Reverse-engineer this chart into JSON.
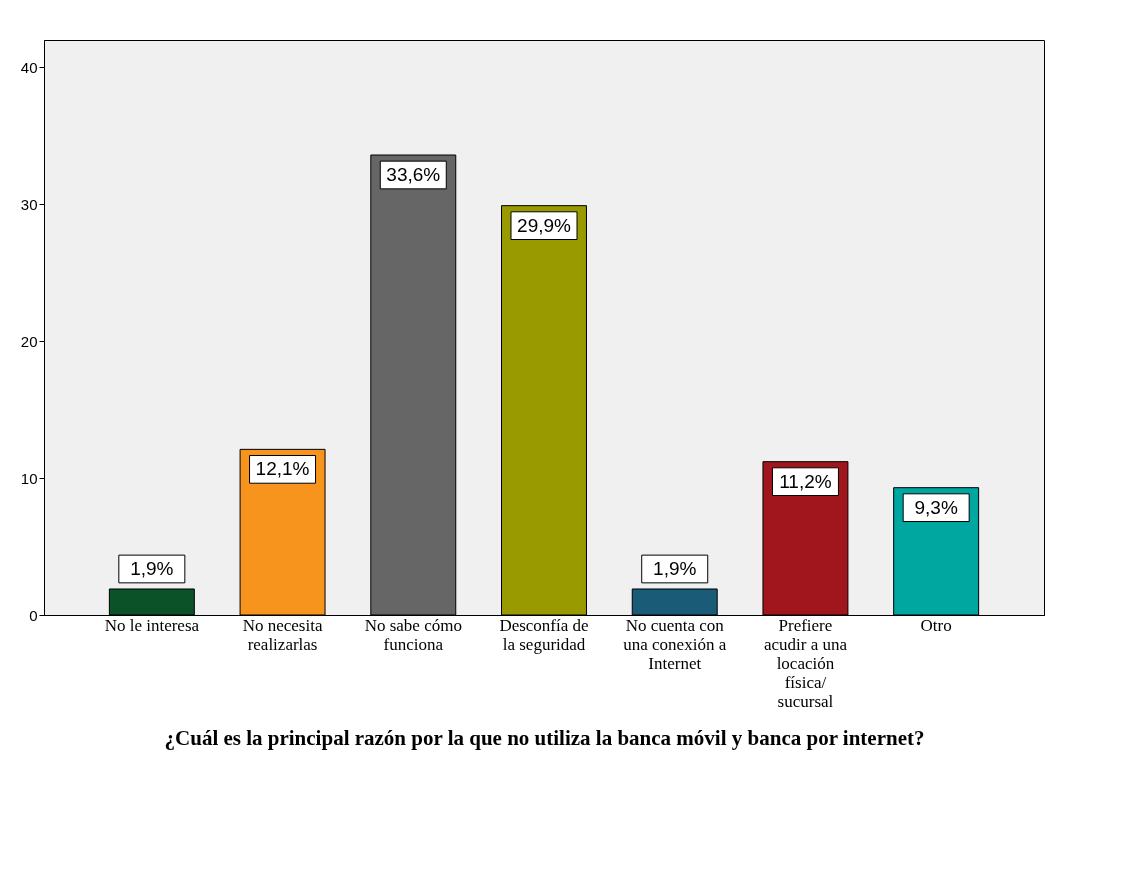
{
  "chart_data": {
    "type": "bar",
    "xlabel": "¿Cuál es la principal razón por la que no utiliza  la banca móvil y banca por internet?",
    "categories": [
      "No le interesa",
      "No necesita realizarlas",
      "No sabe cómo funciona",
      "Desconfía de la seguridad",
      "No cuenta con una conexión a Internet",
      "Prefiere acudir a una locación física/ sucursal",
      "Otro"
    ],
    "values": [
      1.9,
      12.1,
      33.6,
      29.9,
      1.9,
      11.2,
      9.3
    ],
    "colors": [
      "#0b5228",
      "#f7941d",
      "#666666",
      "#999900",
      "#1a5b78",
      "#a0161c",
      "#00a6a0"
    ],
    "value_labels": [
      "1,9%",
      "12,1%",
      "33,6%",
      "29,9%",
      "1,9%",
      "11,2%",
      "9,3%"
    ],
    "ylim": [
      0,
      42
    ],
    "yticks": [
      0,
      10,
      20,
      30,
      40
    ],
    "grid": false
  }
}
